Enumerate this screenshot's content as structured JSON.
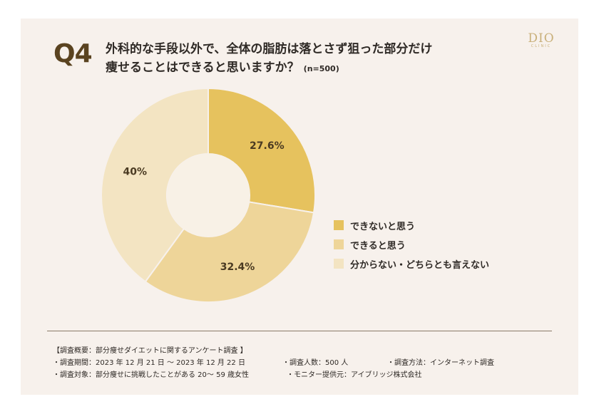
{
  "question": {
    "number": "Q4",
    "line1": "外科的な手段以外で、全体の脂肪は落とさず狙った部分だけ",
    "line2": "痩せることはできると思いますか？",
    "sample": "(n=500)"
  },
  "logo": {
    "main": "DIO",
    "sub": "CLINIC"
  },
  "chart_data": {
    "type": "pie",
    "donut": true,
    "categories": [
      "できないと思う",
      "できると思う",
      "分からない・どちらとも言えない"
    ],
    "values": [
      27.6,
      32.4,
      40
    ],
    "value_labels": [
      "27.6%",
      "32.4%",
      "40%"
    ],
    "colors": [
      "#e6c25e",
      "#eed599",
      "#f3e4c2"
    ],
    "legend_position": "right",
    "start": "top, clockwise"
  },
  "colors": {
    "card": "#f7f1ec",
    "hole": "#f8f1e6",
    "accent": "#5a4320"
  },
  "summary": {
    "heading": "【調査概要：部分痩せダイエットに関するアンケート調査 】",
    "period": "・調査期間：2023 年 12 月 21 日 ～ 2023 年 12 月 22 日",
    "count": "・調査人数：500 人",
    "method": "・調査方法：インターネット調査",
    "target": "・調査対象：部分痩せに挑戦したことがある 20～ 59 歳女性",
    "provider": "・モニター提供元：アイブリッジ株式会社"
  }
}
